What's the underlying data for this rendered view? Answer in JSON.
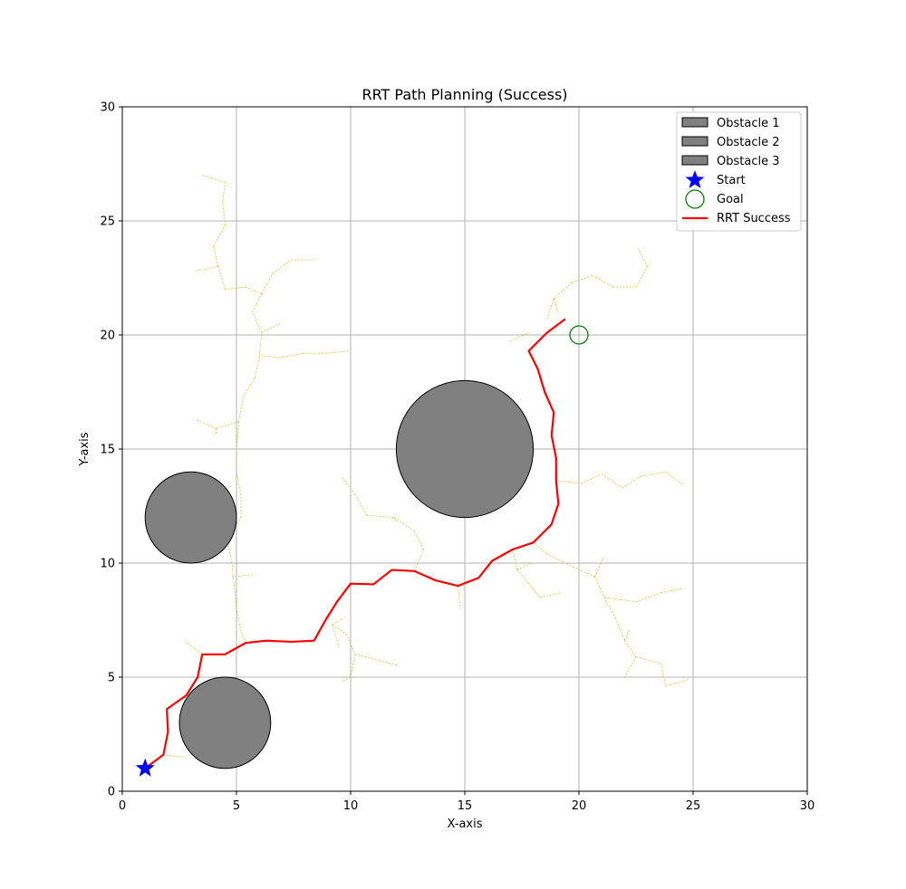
{
  "chart_data": {
    "type": "scatter",
    "title": "RRT Path Planning (Success)",
    "xlabel": "X-axis",
    "ylabel": "Y-axis",
    "xlim": [
      0,
      30
    ],
    "ylim": [
      0,
      30
    ],
    "xticks": [
      0,
      5,
      10,
      15,
      20,
      25,
      30
    ],
    "yticks": [
      0,
      5,
      10,
      15,
      20,
      25,
      30
    ],
    "grid": true,
    "legend_position": "top-right",
    "colors": {
      "obstacle_fill": "#808080",
      "obstacle_edge": "#000000",
      "start": "#0000ff",
      "goal": "#008000",
      "path": "#ff0000",
      "tree": "#c8c832",
      "grid": "#b0b0b0"
    },
    "obstacles": [
      {
        "name": "Obstacle 1",
        "cx": 15,
        "cy": 15,
        "r": 3
      },
      {
        "name": "Obstacle 2",
        "cx": 3,
        "cy": 12,
        "r": 2
      },
      {
        "name": "Obstacle 3",
        "cx": 4.5,
        "cy": 3,
        "r": 2
      }
    ],
    "start": {
      "name": "Start",
      "x": 1,
      "y": 1
    },
    "goal": {
      "name": "Goal",
      "x": 20,
      "y": 20
    },
    "path": {
      "name": "RRT Success",
      "x": [
        1,
        1.8,
        2.0,
        1.95,
        2.8,
        3.3,
        3.5,
        4.5,
        5.4,
        6.3,
        7.4,
        8.4,
        8.9,
        9.4,
        10.0,
        11.0,
        11.8,
        12.8,
        13.7,
        14.7,
        15.6,
        16.2,
        17.1,
        18.0,
        18.4,
        18.8,
        19.1,
        19.0,
        19.0,
        18.8,
        18.9,
        18.5,
        18.2,
        17.8,
        18.6,
        19.4
      ],
      "y": [
        1,
        1.6,
        2.6,
        3.6,
        4.2,
        5.0,
        6.0,
        6.0,
        6.5,
        6.6,
        6.55,
        6.6,
        7.5,
        8.3,
        9.1,
        9.07,
        9.7,
        9.65,
        9.25,
        9.0,
        9.35,
        10.1,
        10.6,
        10.9,
        11.3,
        11.7,
        12.6,
        13.6,
        14.6,
        15.6,
        16.6,
        17.5,
        18.5,
        19.3,
        20.1,
        20.7
      ]
    },
    "tree_edges": [
      [
        [
          1.0,
          1.0
        ],
        [
          1.8,
          1.6
        ]
      ],
      [
        [
          1.8,
          1.6
        ],
        [
          2.7,
          1.5
        ]
      ],
      [
        [
          3.5,
          6.0
        ],
        [
          2.7,
          6.6
        ]
      ],
      [
        [
          5.4,
          6.5
        ],
        [
          5.2,
          7.0
        ]
      ],
      [
        [
          5.2,
          7.0
        ],
        [
          5.0,
          8.0
        ]
      ],
      [
        [
          5.0,
          8.0
        ],
        [
          4.9,
          9.0
        ]
      ],
      [
        [
          4.9,
          9.0
        ],
        [
          4.8,
          10.0
        ]
      ],
      [
        [
          4.8,
          9.4
        ],
        [
          5.8,
          9.5
        ]
      ],
      [
        [
          4.8,
          10.0
        ],
        [
          4.6,
          11.0
        ]
      ],
      [
        [
          4.6,
          11.0
        ],
        [
          5.2,
          12.0
        ]
      ],
      [
        [
          5.2,
          12.0
        ],
        [
          5.2,
          13.0
        ]
      ],
      [
        [
          5.2,
          13.0
        ],
        [
          5.0,
          14.0
        ]
      ],
      [
        [
          5.0,
          14.0
        ],
        [
          5.0,
          15.0
        ]
      ],
      [
        [
          5.0,
          15.0
        ],
        [
          5.1,
          16.2
        ]
      ],
      [
        [
          5.1,
          16.2
        ],
        [
          4.1,
          15.9
        ]
      ],
      [
        [
          4.1,
          15.9
        ],
        [
          3.2,
          16.3
        ]
      ],
      [
        [
          4.1,
          15.9
        ],
        [
          4.1,
          15.6
        ]
      ],
      [
        [
          5.1,
          16.2
        ],
        [
          5.3,
          17.3
        ]
      ],
      [
        [
          5.3,
          17.3
        ],
        [
          5.8,
          18.1
        ]
      ],
      [
        [
          5.8,
          18.1
        ],
        [
          6.0,
          19.0
        ]
      ],
      [
        [
          6.0,
          19.0
        ],
        [
          6.1,
          20.1
        ]
      ],
      [
        [
          6.1,
          19.1
        ],
        [
          6.9,
          19.0
        ]
      ],
      [
        [
          6.9,
          19.0
        ],
        [
          7.9,
          19.2
        ]
      ],
      [
        [
          7.9,
          19.2
        ],
        [
          9.0,
          19.2
        ]
      ],
      [
        [
          9.0,
          19.2
        ],
        [
          9.9,
          19.3
        ]
      ],
      [
        [
          6.1,
          20.1
        ],
        [
          6.9,
          20.5
        ]
      ],
      [
        [
          6.1,
          20.1
        ],
        [
          5.7,
          21.0
        ]
      ],
      [
        [
          5.7,
          21.0
        ],
        [
          6.1,
          21.8
        ]
      ],
      [
        [
          6.1,
          21.8
        ],
        [
          5.4,
          22.1
        ]
      ],
      [
        [
          5.4,
          22.1
        ],
        [
          4.5,
          22.0
        ]
      ],
      [
        [
          6.1,
          21.8
        ],
        [
          6.6,
          22.7
        ]
      ],
      [
        [
          6.6,
          22.7
        ],
        [
          7.4,
          23.3
        ]
      ],
      [
        [
          7.4,
          23.3
        ],
        [
          8.5,
          23.3
        ]
      ],
      [
        [
          4.5,
          22.0
        ],
        [
          4.2,
          23.0
        ]
      ],
      [
        [
          4.2,
          23.0
        ],
        [
          3.2,
          22.8
        ]
      ],
      [
        [
          4.2,
          23.0
        ],
        [
          4.0,
          23.9
        ]
      ],
      [
        [
          4.0,
          23.9
        ],
        [
          4.5,
          24.8
        ]
      ],
      [
        [
          4.5,
          24.8
        ],
        [
          4.4,
          25.8
        ]
      ],
      [
        [
          4.4,
          25.8
        ],
        [
          4.5,
          26.7
        ]
      ],
      [
        [
          4.5,
          26.7
        ],
        [
          3.5,
          27.0
        ]
      ],
      [
        [
          9.5,
          6.3
        ],
        [
          9.2,
          7.3
        ]
      ],
      [
        [
          9.2,
          7.3
        ],
        [
          9.7,
          7.6
        ]
      ],
      [
        [
          9.2,
          7.3
        ],
        [
          9.8,
          6.9
        ]
      ],
      [
        [
          9.8,
          6.9
        ],
        [
          10.2,
          6.0
        ]
      ],
      [
        [
          10.2,
          6.0
        ],
        [
          11.0,
          5.8
        ]
      ],
      [
        [
          11.0,
          5.8
        ],
        [
          12.1,
          5.5
        ]
      ],
      [
        [
          10.2,
          6.0
        ],
        [
          10.0,
          5.0
        ]
      ],
      [
        [
          10.0,
          5.0
        ],
        [
          9.6,
          4.8
        ]
      ],
      [
        [
          12.8,
          9.65
        ],
        [
          13.2,
          10.6
        ]
      ],
      [
        [
          13.2,
          10.6
        ],
        [
          12.8,
          11.4
        ]
      ],
      [
        [
          12.8,
          11.4
        ],
        [
          11.9,
          12.0
        ]
      ],
      [
        [
          11.9,
          12.0
        ],
        [
          10.7,
          12.1
        ]
      ],
      [
        [
          10.7,
          12.1
        ],
        [
          10.2,
          13.0
        ]
      ],
      [
        [
          10.2,
          13.0
        ],
        [
          9.6,
          13.8
        ]
      ],
      [
        [
          11.9,
          12.0
        ],
        [
          12.0,
          11.8
        ]
      ],
      [
        [
          14.7,
          9.0
        ],
        [
          14.8,
          8.0
        ]
      ],
      [
        [
          17.1,
          10.6
        ],
        [
          17.3,
          9.7
        ]
      ],
      [
        [
          17.3,
          9.7
        ],
        [
          17.8,
          9.1
        ]
      ],
      [
        [
          17.8,
          9.1
        ],
        [
          18.3,
          8.5
        ]
      ],
      [
        [
          18.3,
          8.5
        ],
        [
          19.2,
          8.7
        ]
      ],
      [
        [
          17.3,
          9.7
        ],
        [
          17.9,
          10.0
        ]
      ],
      [
        [
          18.0,
          10.9
        ],
        [
          18.6,
          10.4
        ]
      ],
      [
        [
          18.6,
          10.4
        ],
        [
          19.6,
          9.9
        ]
      ],
      [
        [
          19.6,
          9.9
        ],
        [
          20.7,
          9.4
        ]
      ],
      [
        [
          20.7,
          9.4
        ],
        [
          21.1,
          10.3
        ]
      ],
      [
        [
          20.7,
          9.4
        ],
        [
          21.1,
          8.5
        ]
      ],
      [
        [
          21.1,
          8.5
        ],
        [
          21.6,
          7.6
        ]
      ],
      [
        [
          21.6,
          7.6
        ],
        [
          22.0,
          6.6
        ]
      ],
      [
        [
          22.0,
          6.6
        ],
        [
          22.2,
          7.1
        ]
      ],
      [
        [
          22.0,
          6.6
        ],
        [
          22.5,
          5.9
        ]
      ],
      [
        [
          22.5,
          5.9
        ],
        [
          22.0,
          5.0
        ]
      ],
      [
        [
          22.5,
          5.9
        ],
        [
          23.6,
          5.6
        ]
      ],
      [
        [
          23.6,
          5.6
        ],
        [
          23.8,
          4.6
        ]
      ],
      [
        [
          23.8,
          4.6
        ],
        [
          24.8,
          4.9
        ]
      ],
      [
        [
          21.1,
          8.5
        ],
        [
          22.5,
          8.3
        ]
      ],
      [
        [
          22.5,
          8.3
        ],
        [
          23.6,
          8.7
        ]
      ],
      [
        [
          23.6,
          8.7
        ],
        [
          24.6,
          8.9
        ]
      ],
      [
        [
          19.1,
          13.6
        ],
        [
          20.1,
          13.5
        ]
      ],
      [
        [
          20.1,
          13.5
        ],
        [
          21.0,
          13.9
        ]
      ],
      [
        [
          21.0,
          13.9
        ],
        [
          21.9,
          13.3
        ]
      ],
      [
        [
          21.9,
          13.3
        ],
        [
          22.7,
          13.8
        ]
      ],
      [
        [
          22.7,
          13.8
        ],
        [
          23.8,
          14.0
        ]
      ],
      [
        [
          23.8,
          14.0
        ],
        [
          24.6,
          13.4
        ]
      ],
      [
        [
          17.8,
          20.1
        ],
        [
          16.9,
          19.7
        ]
      ],
      [
        [
          18.6,
          20.7
        ],
        [
          18.9,
          21.6
        ]
      ],
      [
        [
          18.9,
          21.6
        ],
        [
          19.1,
          20.9
        ]
      ],
      [
        [
          18.9,
          21.6
        ],
        [
          19.7,
          22.3
        ]
      ],
      [
        [
          19.7,
          22.3
        ],
        [
          20.6,
          22.6
        ]
      ],
      [
        [
          20.6,
          22.6
        ],
        [
          21.5,
          22.1
        ]
      ],
      [
        [
          21.5,
          22.1
        ],
        [
          22.5,
          22.1
        ]
      ],
      [
        [
          22.5,
          22.1
        ],
        [
          23.0,
          23.0
        ]
      ],
      [
        [
          23.0,
          23.0
        ],
        [
          22.6,
          23.8
        ]
      ]
    ]
  }
}
